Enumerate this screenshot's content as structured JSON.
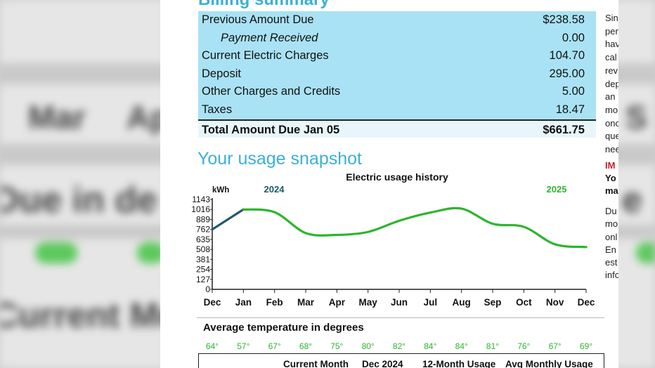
{
  "background": {
    "blurred_words": [
      "Mar",
      "Ap",
      "Due in de",
      "Current Mo"
    ]
  },
  "bill": {
    "section_heading": "Billing summary",
    "summary_rows": [
      {
        "label": "Previous Amount Due",
        "value": "$238.58",
        "italic": false
      },
      {
        "label": "Payment Received",
        "value": "0.00",
        "italic": true
      },
      {
        "label": "Current Electric Charges",
        "value": "104.70",
        "italic": false
      },
      {
        "label": "Deposit",
        "value": "295.00",
        "italic": false
      },
      {
        "label": "Other Charges and Credits",
        "value": "5.00",
        "italic": false
      },
      {
        "label": "Taxes",
        "value": "18.47",
        "italic": false
      }
    ],
    "total": {
      "label": "Total Amount Due Jan 05",
      "value": "$661.75"
    },
    "side_text_1": "Sin\nper\nhav\ncal\nrev\ndep\nan\nmo\nonc\nque\nnee",
    "side_red": "IM",
    "side_bold": "Yo\nma",
    "side_text_2": "Du\nmo\nonl\nEn\nest\ninfo"
  },
  "usage": {
    "title": "Your usage snapshot",
    "temperature_title": "Average temperature in degrees",
    "temperatures": [
      "64°",
      "57°",
      "67°",
      "68°",
      "75°",
      "80°",
      "82°",
      "84°",
      "84°",
      "81°",
      "76°",
      "67°",
      "69°"
    ]
  },
  "chart_data": {
    "type": "line",
    "title": "Electric usage history",
    "ylabel": "kWh",
    "xlabel": "",
    "year_labels": [
      "2024",
      "2025"
    ],
    "year_colors": [
      "#1c5a66",
      "#2db52d"
    ],
    "categories": [
      "Dec",
      "Jan",
      "Feb",
      "Mar",
      "Apr",
      "May",
      "Jun",
      "Jul",
      "Aug",
      "Sep",
      "Oct",
      "Nov",
      "Dec"
    ],
    "yticks": [
      0,
      127,
      254,
      381,
      508,
      635,
      762,
      889,
      1016,
      1143
    ],
    "ylim": [
      0,
      1143
    ],
    "series": [
      {
        "name": "2024",
        "color": "#1c5a66",
        "values": [
          762,
          1016,
          null,
          null,
          null,
          null,
          null,
          null,
          null,
          null,
          null,
          null,
          null
        ]
      },
      {
        "name": "2025",
        "color": "#2db52d",
        "values": [
          null,
          1016,
          981,
          716,
          692,
          730,
          872,
          976,
          1026,
          834,
          795,
          573,
          538
        ]
      }
    ]
  },
  "bottom_table": {
    "headers": [
      "Current Month",
      "Dec 2024",
      "12-Month Usage",
      "Avg Monthly Usage"
    ]
  }
}
